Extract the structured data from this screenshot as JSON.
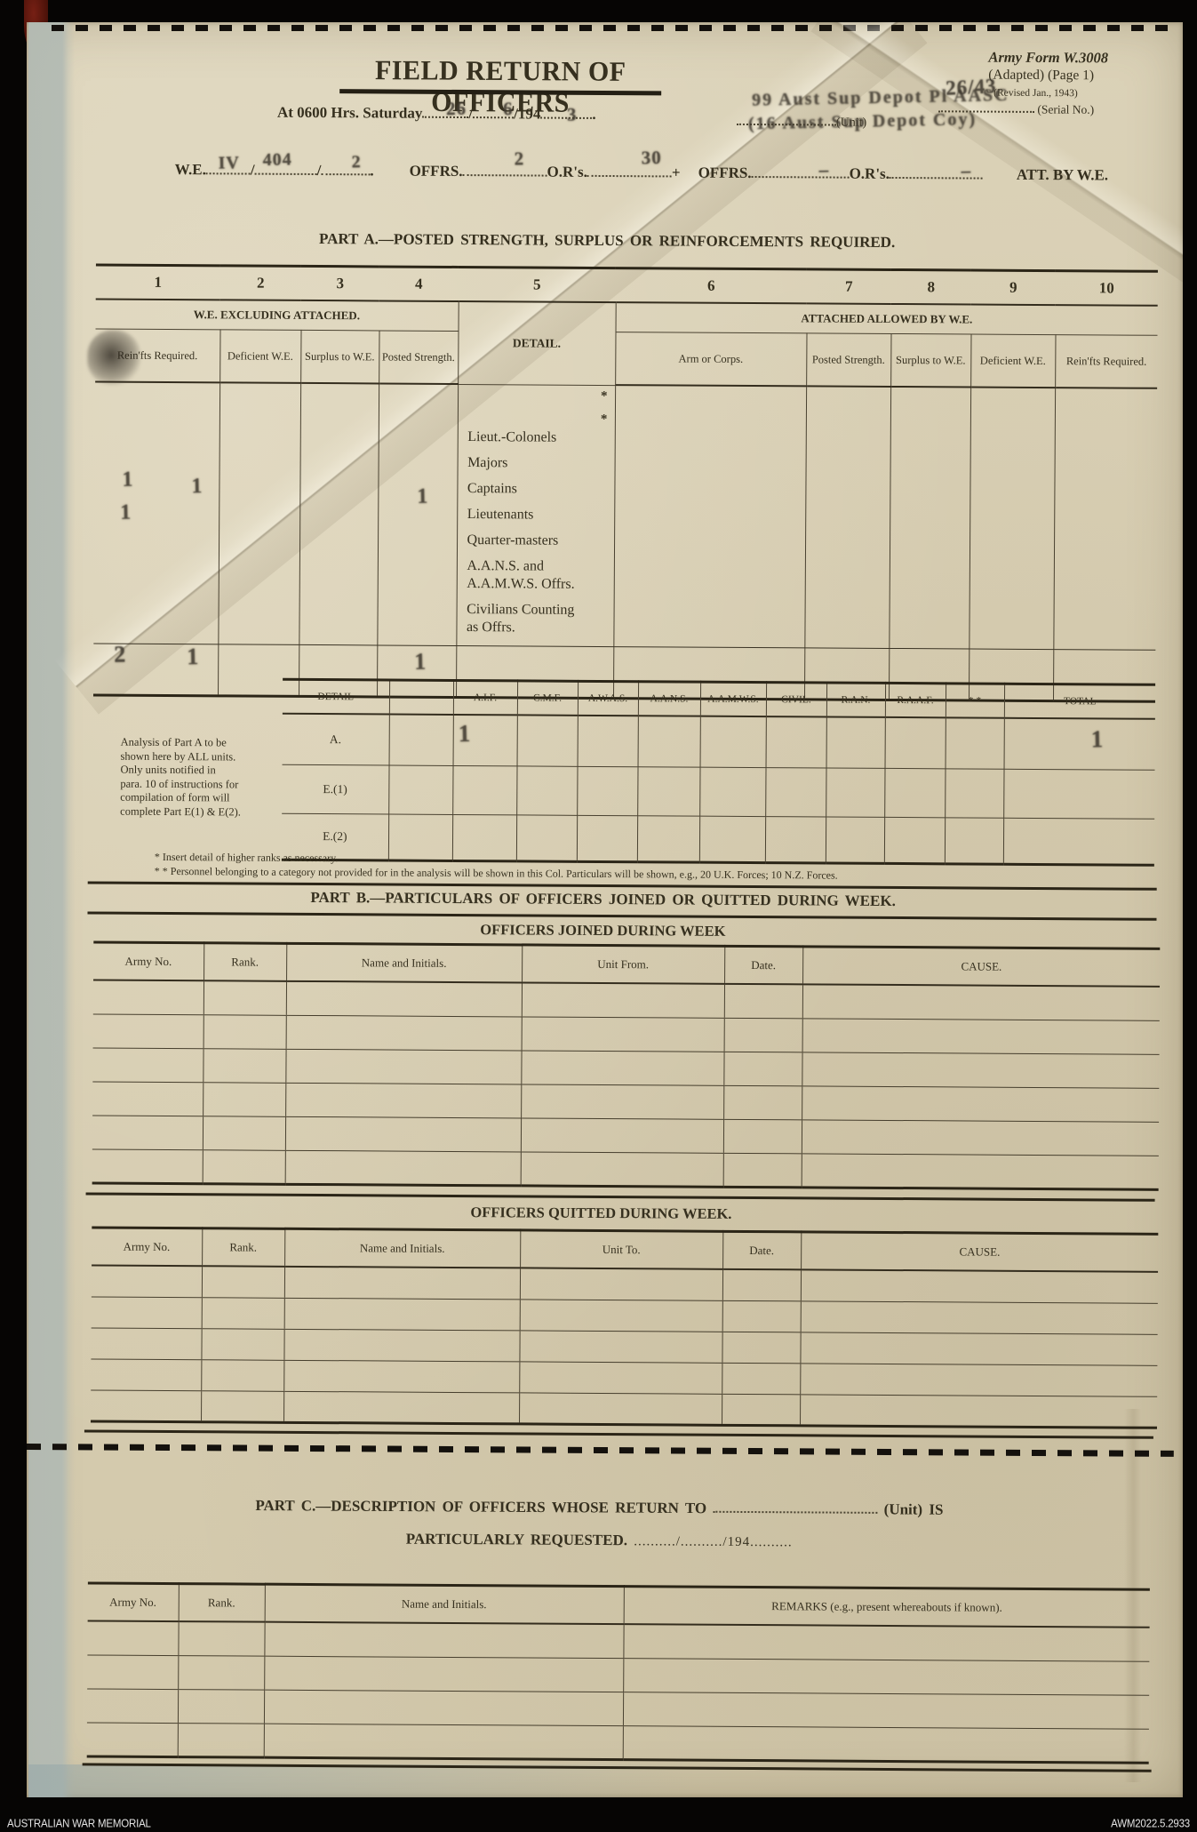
{
  "glyphs": {
    "slash": "/",
    "period": ".",
    "plus": "+"
  },
  "scan": {
    "archive_left": "AUSTRALIAN WAR MEMORIAL",
    "archive_right": "AWM2022.5.2933"
  },
  "form_meta": {
    "line1": "Army Form W.3008",
    "line2": "(Adapted)  (Page 1)",
    "line3": "(Revised Jan., 1943)",
    "serial_label": "(Serial No.)",
    "serial_stamp": "26/43"
  },
  "header": {
    "title": "FIELD RETURN OF OFFICERS",
    "date_prefix": "At 0600 Hrs. Saturday",
    "year_prefix": "/194",
    "day_stamp": "26",
    "month_stamp": "6",
    "year_stamp": "3",
    "unit_label": "(Unit)",
    "unit_stamp_line1": "99 Aust Sup Depot Pl AASC",
    "unit_stamp_line2": "(16 Aust Sup Depot Coy)"
  },
  "we_line": {
    "we": "W.E.",
    "offrs": "OFFRS.",
    "ors": "O.R's.",
    "att": "ATT. BY W.E.",
    "stamp_scale": "IV",
    "stamp_num": "404",
    "stamp_col": "2",
    "stamp_offrs": "2",
    "stamp_ors": "30",
    "stamp_offrs2": "–",
    "stamp_ors2": "–"
  },
  "part_a": {
    "heading": "PART A.—POSTED STRENGTH, SURPLUS OR REINFORCEMENTS REQUIRED.",
    "col_numbers": [
      "1",
      "2",
      "3",
      "4",
      "5",
      "6",
      "7",
      "8",
      "9",
      "10"
    ],
    "group_left": "W.E. EXCLUDING ATTACHED.",
    "group_right": "ATTACHED ALLOWED BY W.E.",
    "detail": "DETAIL.",
    "col1": "Rein'fts Required.",
    "col2": "Deficient W.E.",
    "col3": "Surplus to W.E.",
    "col4": "Posted Strength.",
    "col6": "Arm or Corps.",
    "col7": "Posted Strength.",
    "col8": "Surplus to W.E.",
    "col9": "Deficient W.E.",
    "col10": "Rein'fts Required.",
    "asterisk": "*",
    "ranks": [
      "Lieut.-Colonels",
      "Majors",
      "Captains",
      "Lieutenants",
      "Quarter-masters",
      "A.A.N.S. and\n A.A.M.W.S. Offrs.",
      "Civilians Counting\n as Offrs."
    ],
    "stamps": {
      "c1a": "1",
      "c1b": "1",
      "c2": "1",
      "c4": "1",
      "t1": "2",
      "t2": "1",
      "t4": "1"
    }
  },
  "analysis": {
    "note": "Analysis of Part A to be\nshown here by ALL units.\nOnly units notified in\npara. 10 of instructions for\ncompilation of form will\ncomplete Part E(1) & E(2).",
    "headers": [
      "DETAIL",
      "",
      "A.I.F.",
      "C.M.F.",
      "A.W.A.S.",
      "A.A.N.S.",
      "A.A.M.W.S.",
      "CIVIL.",
      "R.A.N.",
      "R.A.A.F.",
      "* *",
      "TOTAL"
    ],
    "row_labels": [
      "A.",
      "E.(1)",
      "E.(2)"
    ],
    "stamp_aif": "1",
    "stamp_total": "1",
    "footnote1": "* Insert detail of higher ranks as necessary.",
    "footnote2": "* * Personnel belonging to a category not provided for in the analysis will be shown in this Col.  Particulars will be shown, e.g., 20 U.K. Forces; 10 N.Z. Forces."
  },
  "part_b": {
    "heading": "PART B.—PARTICULARS OF OFFICERS JOINED OR QUITTED DURING WEEK.",
    "joined_title": "OFFICERS JOINED DURING WEEK",
    "joined_headers": [
      "Army No.",
      "Rank.",
      "Name and Initials.",
      "Unit From.",
      "Date.",
      "CAUSE."
    ],
    "quitted_title": "OFFICERS QUITTED DURING WEEK.",
    "quitted_headers": [
      "Army No.",
      "Rank.",
      "Name and Initials.",
      "Unit  To.",
      "Date.",
      "CAUSE."
    ]
  },
  "part_c": {
    "heading_line1": "PART C.—DESCRIPTION OF OFFICERS WHOSE RETURN TO",
    "unit_suffix": "(Unit) IS",
    "heading_line2": "PARTICULARLY REQUESTED.",
    "date_blank": "........../........../194..........",
    "headers": [
      "Army No.",
      "Rank.",
      "Name and Initials.",
      "REMARKS (e.g., present whereabouts if known)."
    ]
  }
}
